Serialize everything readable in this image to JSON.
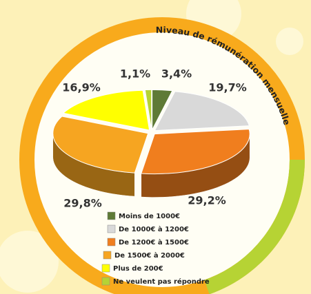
{
  "chart_data": {
    "type": "pie",
    "title": "Niveau de rémunération mensuelle",
    "categories": [
      "Moins de 1000€",
      "De 1000€ à 1200€",
      "De 1200€ à 1500€",
      "De 1500€ à 2000€",
      "Plus de 200€",
      "Ne veulent pas répondre"
    ],
    "values": [
      3.4,
      19.7,
      29.2,
      29.8,
      16.9,
      1.1
    ],
    "value_labels": [
      "3,4%",
      "19,7%",
      "29,2%",
      "29,8%",
      "16,9%",
      "1,1%"
    ],
    "colors": [
      "#5e7a36",
      "#d9d9d9",
      "#f07e1e",
      "#f6a521",
      "#ffff00",
      "#b6d334"
    ]
  }
}
